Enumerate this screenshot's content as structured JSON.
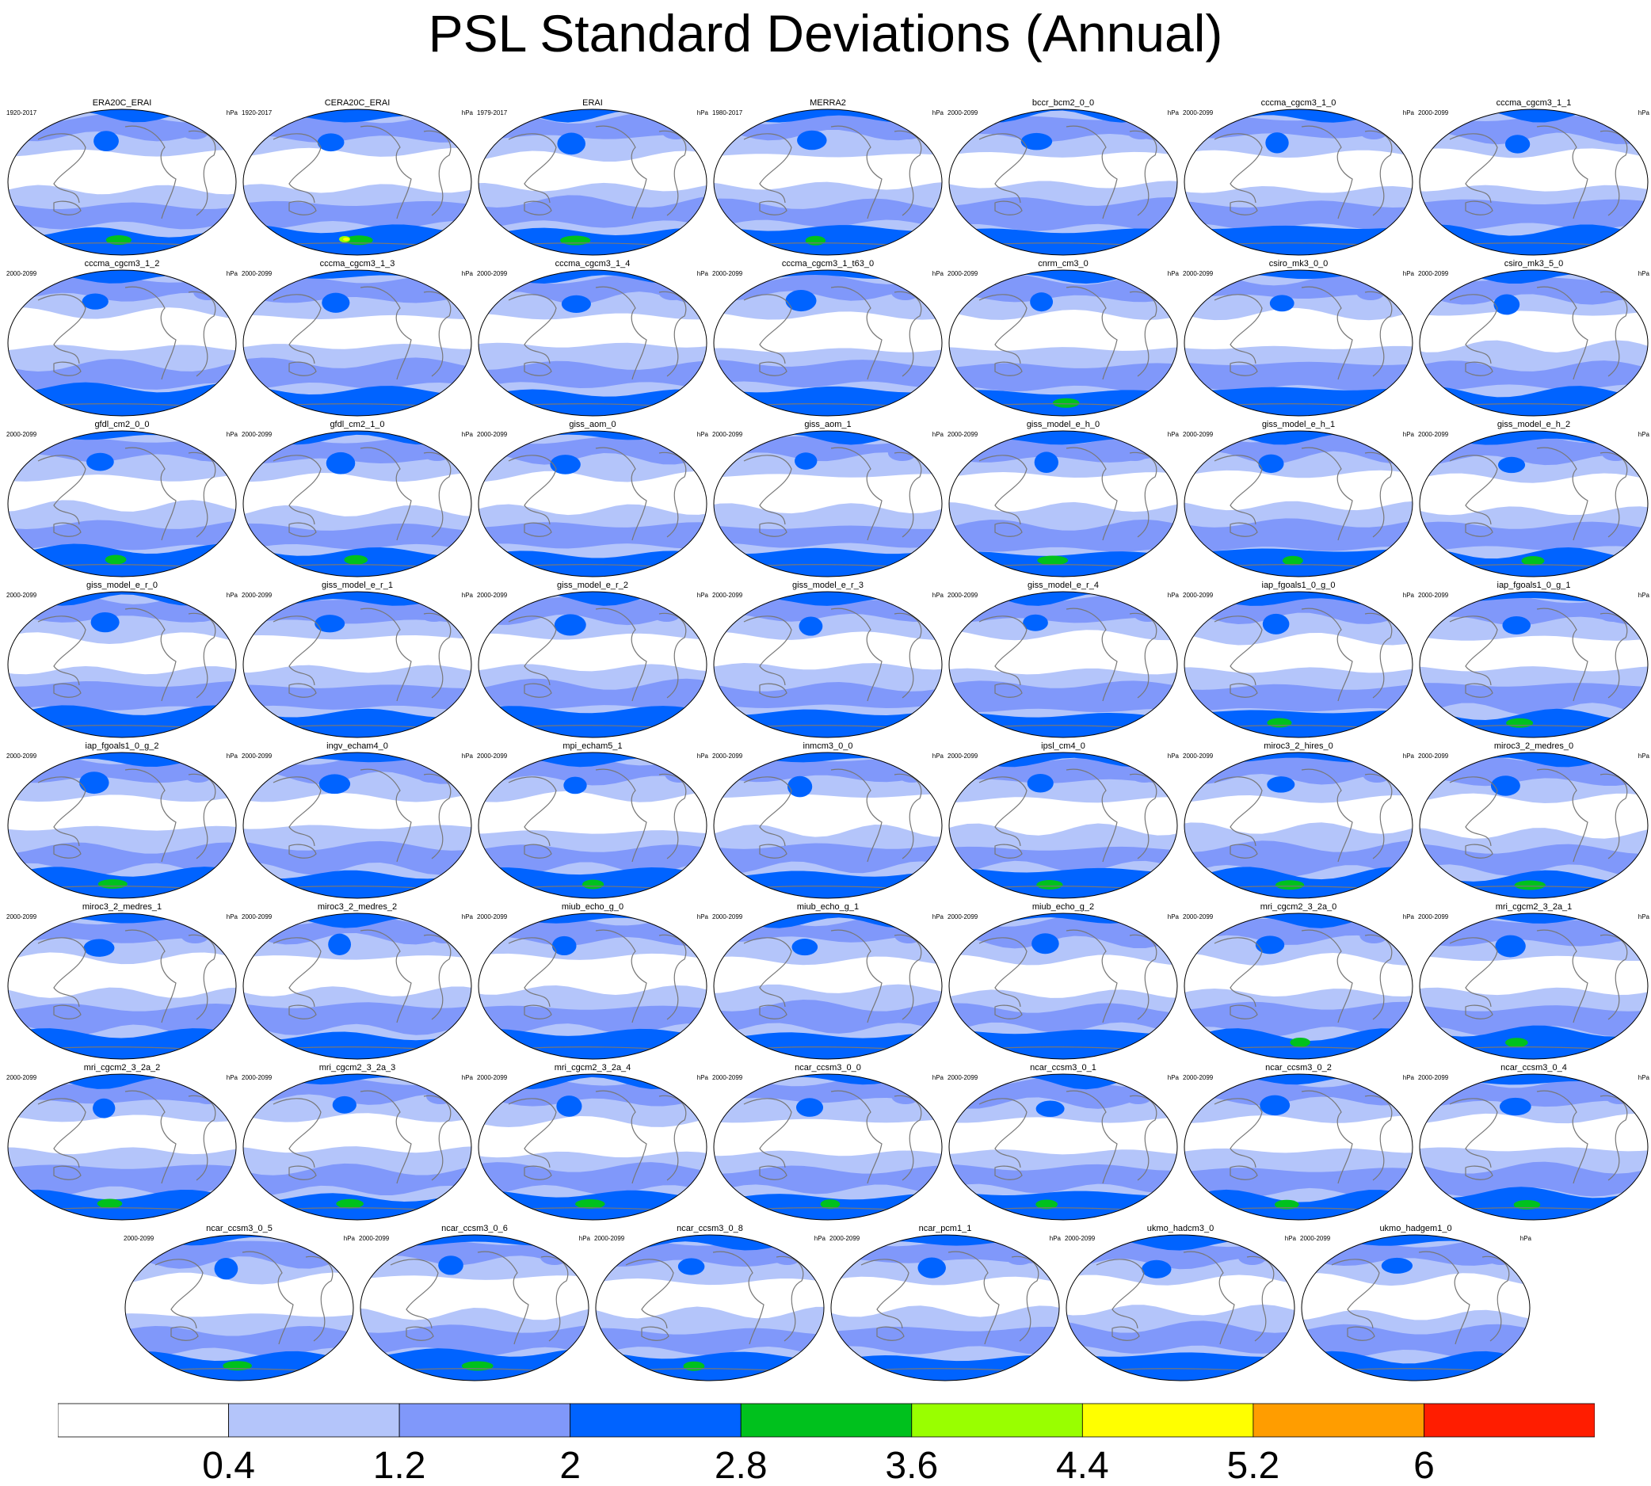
{
  "title": "PSL Standard Deviations (Annual)",
  "units": "hPa",
  "chart_data": {
    "type": "heatmap",
    "description_variable": "PSL",
    "levels": [
      0.4,
      1.2,
      2,
      2.8,
      3.6,
      4.4,
      5.2,
      6
    ],
    "colors": [
      "#ffffff",
      "#b4c5fa",
      "#8098fa",
      "#0063ff",
      "#00c11d",
      "#99ff00",
      "#ffff00",
      "#ff9d00",
      "#ff1d00"
    ],
    "panels": [
      {
        "name": "ERA20C_ERAI",
        "years": "1920-2017",
        "max_class": 4
      },
      {
        "name": "CERA20C_ERAI",
        "years": "1920-2017",
        "max_class": 6
      },
      {
        "name": "ERAI",
        "years": "1979-2017",
        "max_class": 4
      },
      {
        "name": "MERRA2",
        "years": "1980-2017",
        "max_class": 4
      },
      {
        "name": "bccr_bcm2_0_0",
        "years": "2000-2099",
        "max_class": 3
      },
      {
        "name": "cccma_cgcm3_1_0",
        "years": "2000-2099",
        "max_class": 3
      },
      {
        "name": "cccma_cgcm3_1_1",
        "years": "2000-2099",
        "max_class": 3
      },
      {
        "name": "cccma_cgcm3_1_2",
        "years": "2000-2099",
        "max_class": 3
      },
      {
        "name": "cccma_cgcm3_1_3",
        "years": "2000-2099",
        "max_class": 3
      },
      {
        "name": "cccma_cgcm3_1_4",
        "years": "2000-2099",
        "max_class": 3
      },
      {
        "name": "cccma_cgcm3_1_t63_0",
        "years": "2000-2099",
        "max_class": 3
      },
      {
        "name": "cnrm_cm3_0",
        "years": "2000-2099",
        "max_class": 4
      },
      {
        "name": "csiro_mk3_0_0",
        "years": "2000-2099",
        "max_class": 3
      },
      {
        "name": "csiro_mk3_5_0",
        "years": "2000-2099",
        "max_class": 3
      },
      {
        "name": "gfdl_cm2_0_0",
        "years": "2000-2099",
        "max_class": 4
      },
      {
        "name": "gfdl_cm2_1_0",
        "years": "2000-2099",
        "max_class": 4
      },
      {
        "name": "giss_aom_0",
        "years": "2000-2099",
        "max_class": 3
      },
      {
        "name": "giss_aom_1",
        "years": "2000-2099",
        "max_class": 3
      },
      {
        "name": "giss_model_e_h_0",
        "years": "2000-2099",
        "max_class": 4
      },
      {
        "name": "giss_model_e_h_1",
        "years": "2000-2099",
        "max_class": 4
      },
      {
        "name": "giss_model_e_h_2",
        "years": "2000-2099",
        "max_class": 4
      },
      {
        "name": "giss_model_e_r_0",
        "years": "2000-2099",
        "max_class": 3
      },
      {
        "name": "giss_model_e_r_1",
        "years": "2000-2099",
        "max_class": 3
      },
      {
        "name": "giss_model_e_r_2",
        "years": "2000-2099",
        "max_class": 3
      },
      {
        "name": "giss_model_e_r_3",
        "years": "2000-2099",
        "max_class": 3
      },
      {
        "name": "giss_model_e_r_4",
        "years": "2000-2099",
        "max_class": 3
      },
      {
        "name": "iap_fgoals1_0_g_0",
        "years": "2000-2099",
        "max_class": 4
      },
      {
        "name": "iap_fgoals1_0_g_1",
        "years": "2000-2099",
        "max_class": 4
      },
      {
        "name": "iap_fgoals1_0_g_2",
        "years": "2000-2099",
        "max_class": 4
      },
      {
        "name": "ingv_echam4_0",
        "years": "2000-2099",
        "max_class": 3
      },
      {
        "name": "mpi_echam5_1",
        "years": "2000-2099",
        "max_class": 4
      },
      {
        "name": "inmcm3_0_0",
        "years": "2000-2099",
        "max_class": 3
      },
      {
        "name": "ipsl_cm4_0",
        "years": "2000-2099",
        "max_class": 4
      },
      {
        "name": "miroc3_2_hires_0",
        "years": "2000-2099",
        "max_class": 4
      },
      {
        "name": "miroc3_2_medres_0",
        "years": "2000-2099",
        "max_class": 4
      },
      {
        "name": "miroc3_2_medres_1",
        "years": "2000-2099",
        "max_class": 3
      },
      {
        "name": "miroc3_2_medres_2",
        "years": "2000-2099",
        "max_class": 3
      },
      {
        "name": "miub_echo_g_0",
        "years": "2000-2099",
        "max_class": 3
      },
      {
        "name": "miub_echo_g_1",
        "years": "2000-2099",
        "max_class": 3
      },
      {
        "name": "miub_echo_g_2",
        "years": "2000-2099",
        "max_class": 3
      },
      {
        "name": "mri_cgcm2_3_2a_0",
        "years": "2000-2099",
        "max_class": 4
      },
      {
        "name": "mri_cgcm2_3_2a_1",
        "years": "2000-2099",
        "max_class": 4
      },
      {
        "name": "mri_cgcm2_3_2a_2",
        "years": "2000-2099",
        "max_class": 4
      },
      {
        "name": "mri_cgcm2_3_2a_3",
        "years": "2000-2099",
        "max_class": 4
      },
      {
        "name": "mri_cgcm2_3_2a_4",
        "years": "2000-2099",
        "max_class": 4
      },
      {
        "name": "ncar_ccsm3_0_0",
        "years": "2000-2099",
        "max_class": 4
      },
      {
        "name": "ncar_ccsm3_0_1",
        "years": "2000-2099",
        "max_class": 4
      },
      {
        "name": "ncar_ccsm3_0_2",
        "years": "2000-2099",
        "max_class": 4
      },
      {
        "name": "ncar_ccsm3_0_4",
        "years": "2000-2099",
        "max_class": 4
      },
      {
        "name": "ncar_ccsm3_0_5",
        "years": "2000-2099",
        "max_class": 4
      },
      {
        "name": "ncar_ccsm3_0_6",
        "years": "2000-2099",
        "max_class": 4
      },
      {
        "name": "ncar_ccsm3_0_8",
        "years": "2000-2099",
        "max_class": 4
      },
      {
        "name": "ncar_pcm1_1",
        "years": "2000-2099",
        "max_class": 3
      },
      {
        "name": "ukmo_hadcm3_0",
        "years": "2000-2099",
        "max_class": 3
      },
      {
        "name": "ukmo_hadgem1_0",
        "years": "2000-2099",
        "max_class": 3
      }
    ]
  }
}
